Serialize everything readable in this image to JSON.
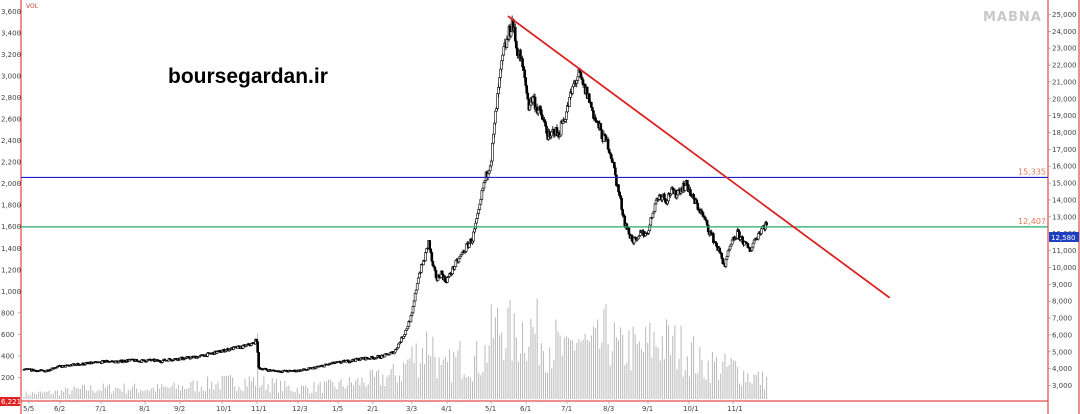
{
  "watermark": "MABNA",
  "site_label": "boursegardan.ir",
  "volume_label": "VOL",
  "volume_last_label": "6,221",
  "last_price_label": "12,580",
  "colors": {
    "candle": "#000000",
    "trendline": "#dd2222",
    "resistance_line": "#2222cc",
    "support_line": "#22aa66",
    "level_text": "#e07a55",
    "last_price_tag": "#1f3fbf",
    "volume_bar": "#b8b8b8",
    "axis_border": "#dd2222"
  },
  "chart_data": {
    "type": "candlestick",
    "x_axis": {
      "tick_labels": [
        "5/5",
        "6/2",
        "7/1",
        "8/1",
        "9/2",
        "10/1",
        "11/1",
        "12/3",
        "1/5",
        "2/1",
        "3/3",
        "4/1",
        "5/1",
        "6/1",
        "7/1",
        "8/3",
        "9/1",
        "10/1",
        "11/1"
      ]
    },
    "right_axis": {
      "range": [
        2200,
        25500
      ],
      "tick_labels": [
        "3,000",
        "4,000",
        "5,000",
        "6,000",
        "7,000",
        "8,000",
        "9,000",
        "10,000",
        "11,000",
        "12,000",
        "13,000",
        "14,000",
        "15,000",
        "16,000",
        "17,000",
        "18,000",
        "19,000",
        "20,000",
        "21,000",
        "22,000",
        "23,000",
        "24,000",
        "25,000"
      ]
    },
    "left_axis": {
      "label": "VOL",
      "range": [
        0,
        3650
      ],
      "tick_labels": [
        "200",
        "400",
        "600",
        "800",
        "1,000",
        "1,200",
        "1,400",
        "1,600",
        "1,800",
        "2,000",
        "2,200",
        "2,400",
        "2,600",
        "2,800",
        "3,000",
        "3,200",
        "3,400",
        "3,600"
      ]
    },
    "price_path": [
      [
        0,
        3950
      ],
      [
        10,
        3900
      ],
      [
        20,
        3850
      ],
      [
        30,
        4100
      ],
      [
        40,
        4150
      ],
      [
        50,
        4250
      ],
      [
        60,
        4300
      ],
      [
        70,
        4350
      ],
      [
        80,
        4450
      ],
      [
        90,
        4400
      ],
      [
        100,
        4500
      ],
      [
        110,
        4450
      ],
      [
        120,
        4500
      ],
      [
        130,
        4450
      ],
      [
        140,
        4550
      ],
      [
        150,
        4600
      ],
      [
        160,
        4650
      ],
      [
        170,
        4750
      ],
      [
        180,
        4900
      ],
      [
        190,
        5050
      ],
      [
        200,
        5200
      ],
      [
        210,
        5300
      ],
      [
        220,
        5500
      ],
      [
        223,
        5700
      ],
      [
        225,
        4050
      ],
      [
        235,
        3900
      ],
      [
        245,
        3850
      ],
      [
        255,
        3850
      ],
      [
        265,
        3900
      ],
      [
        275,
        4000
      ],
      [
        285,
        4150
      ],
      [
        295,
        4300
      ],
      [
        305,
        4400
      ],
      [
        315,
        4500
      ],
      [
        325,
        4600
      ],
      [
        335,
        4650
      ],
      [
        345,
        4750
      ],
      [
        355,
        5000
      ],
      [
        365,
        6100
      ],
      [
        372,
        7200
      ],
      [
        378,
        9500
      ],
      [
        384,
        10500
      ],
      [
        388,
        11500
      ],
      [
        392,
        10000
      ],
      [
        396,
        9300
      ],
      [
        400,
        9700
      ],
      [
        404,
        9200
      ],
      [
        408,
        9500
      ],
      [
        412,
        10000
      ],
      [
        418,
        10600
      ],
      [
        424,
        11200
      ],
      [
        430,
        11700
      ],
      [
        436,
        13200
      ],
      [
        440,
        14700
      ],
      [
        444,
        15600
      ],
      [
        448,
        16500
      ],
      [
        452,
        19000
      ],
      [
        456,
        21000
      ],
      [
        460,
        22800
      ],
      [
        464,
        23600
      ],
      [
        468,
        24600
      ],
      [
        472,
        23100
      ],
      [
        476,
        22400
      ],
      [
        480,
        21200
      ],
      [
        484,
        19600
      ],
      [
        488,
        20100
      ],
      [
        492,
        19400
      ],
      [
        496,
        19000
      ],
      [
        500,
        18300
      ],
      [
        504,
        17500
      ],
      [
        508,
        18200
      ],
      [
        512,
        17800
      ],
      [
        516,
        18600
      ],
      [
        520,
        19200
      ],
      [
        524,
        20100
      ],
      [
        528,
        21000
      ],
      [
        532,
        21400
      ],
      [
        536,
        20700
      ],
      [
        540,
        20300
      ],
      [
        544,
        19500
      ],
      [
        548,
        18700
      ],
      [
        552,
        18200
      ],
      [
        556,
        17600
      ],
      [
        560,
        17300
      ],
      [
        564,
        16400
      ],
      [
        568,
        15100
      ],
      [
        572,
        13900
      ],
      [
        576,
        12700
      ],
      [
        580,
        12000
      ],
      [
        584,
        11600
      ],
      [
        588,
        11500
      ],
      [
        592,
        12200
      ],
      [
        596,
        11900
      ],
      [
        600,
        12500
      ],
      [
        604,
        13600
      ],
      [
        608,
        14200
      ],
      [
        612,
        14300
      ],
      [
        616,
        14000
      ],
      [
        620,
        14500
      ],
      [
        624,
        14300
      ],
      [
        628,
        14600
      ],
      [
        632,
        14800
      ],
      [
        636,
        14900
      ],
      [
        640,
        14200
      ],
      [
        644,
        13800
      ],
      [
        648,
        13400
      ],
      [
        652,
        12900
      ],
      [
        656,
        12300
      ],
      [
        660,
        11800
      ],
      [
        664,
        11300
      ],
      [
        668,
        10700
      ],
      [
        672,
        10100
      ],
      [
        676,
        11000
      ],
      [
        680,
        11600
      ],
      [
        684,
        12000
      ],
      [
        688,
        11700
      ],
      [
        692,
        11300
      ],
      [
        696,
        11000
      ],
      [
        700,
        11600
      ],
      [
        704,
        12000
      ],
      [
        708,
        12400
      ],
      [
        712,
        12580
      ]
    ],
    "volume_path": [
      [
        0,
        60
      ],
      [
        30,
        80
      ],
      [
        60,
        120
      ],
      [
        90,
        130
      ],
      [
        120,
        120
      ],
      [
        150,
        140
      ],
      [
        180,
        180
      ],
      [
        210,
        210
      ],
      [
        222,
        220
      ],
      [
        225,
        720
      ],
      [
        226,
        200
      ],
      [
        260,
        120
      ],
      [
        300,
        160
      ],
      [
        340,
        240
      ],
      [
        360,
        300
      ],
      [
        370,
        480
      ],
      [
        380,
        550
      ],
      [
        390,
        720
      ],
      [
        400,
        300
      ],
      [
        410,
        420
      ],
      [
        420,
        500
      ],
      [
        430,
        460
      ],
      [
        440,
        480
      ],
      [
        450,
        800
      ],
      [
        460,
        900
      ],
      [
        470,
        700
      ],
      [
        480,
        860
      ],
      [
        490,
        800
      ],
      [
        500,
        700
      ],
      [
        510,
        650
      ],
      [
        520,
        500
      ],
      [
        530,
        750
      ],
      [
        540,
        600
      ],
      [
        550,
        620
      ],
      [
        560,
        780
      ],
      [
        570,
        560
      ],
      [
        580,
        620
      ],
      [
        590,
        560
      ],
      [
        600,
        650
      ],
      [
        610,
        700
      ],
      [
        620,
        640
      ],
      [
        630,
        600
      ],
      [
        640,
        560
      ],
      [
        650,
        380
      ],
      [
        660,
        420
      ],
      [
        670,
        360
      ],
      [
        680,
        380
      ],
      [
        690,
        300
      ],
      [
        700,
        260
      ],
      [
        710,
        220
      ]
    ],
    "trendline": {
      "from": [
        464,
        24900
      ],
      "to": [
        830,
        8200
      ]
    },
    "horizontal_levels": [
      {
        "value": 15335,
        "label": "15,335",
        "color": "#2222cc"
      },
      {
        "value": 12407,
        "label": "12,407",
        "color": "#22aa66"
      }
    ]
  }
}
